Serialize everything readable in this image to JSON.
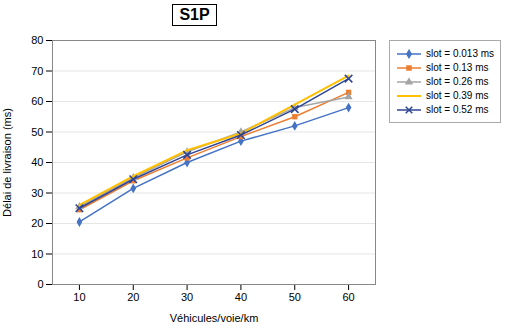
{
  "chart_data": {
    "type": "line",
    "title": "S1P",
    "x_label": "Véhicules/voie/km",
    "y_label": "Délai de livraison (ms)",
    "x": [
      10,
      20,
      30,
      40,
      50,
      60
    ],
    "series": [
      {
        "name": "slot = 0.013 ms",
        "color": "#4472C4",
        "marker": "diamond",
        "values": [
          20.5,
          31.5,
          40.0,
          47.0,
          52.0,
          58.0
        ]
      },
      {
        "name": "slot = 0.13 ms",
        "color": "#ED7D31",
        "marker": "square",
        "values": [
          24.5,
          34.0,
          41.5,
          48.5,
          55.0,
          63.0
        ]
      },
      {
        "name": "slot = 0.26 ms",
        "color": "#A5A5A5",
        "marker": "triangle",
        "values": [
          25.5,
          35.0,
          43.5,
          50.0,
          58.0,
          61.5
        ]
      },
      {
        "name": "slot = 0.39 ms",
        "color": "#FFC000",
        "marker": "none",
        "values": [
          26.0,
          35.5,
          44.0,
          49.5,
          59.0,
          68.5
        ]
      },
      {
        "name": "slot = 0.52 ms",
        "color": "#2E4594",
        "marker": "x",
        "values": [
          25.0,
          34.5,
          42.5,
          49.0,
          57.5,
          67.5
        ]
      }
    ],
    "xlim": [
      5,
      65
    ],
    "ylim": [
      0,
      80
    ],
    "xticks": [
      10,
      20,
      30,
      40,
      50,
      60
    ],
    "yticks": [
      0,
      10,
      20,
      30,
      40,
      50,
      60,
      70,
      80
    ],
    "grid": true,
    "legend": "right"
  }
}
